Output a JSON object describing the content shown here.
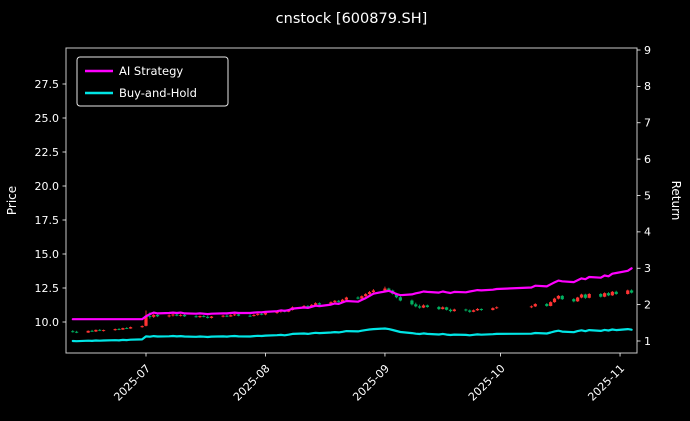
{
  "title": "cnstock [600879.SH]",
  "chart_data": {
    "type": "candlestick+line",
    "title": "cnstock [600879.SH]",
    "grid": false,
    "x_axis": {
      "ticks": [
        {
          "label": "2025-07",
          "date": "2025-07-01"
        },
        {
          "label": "2025-08",
          "date": "2025-08-01"
        },
        {
          "label": "2025-09",
          "date": "2025-09-01"
        },
        {
          "label": "2025-10",
          "date": "2025-10-01"
        },
        {
          "label": "2025-11",
          "date": "2025-11-01"
        }
      ],
      "range": [
        "2025-06-10",
        "2025-11-06"
      ]
    },
    "left_axis": {
      "label": "Price",
      "ticks": [
        "10.0",
        "12.5",
        "15.0",
        "17.5",
        "20.0",
        "22.5",
        "25.0",
        "27.5"
      ],
      "range": [
        7.7,
        30.2
      ]
    },
    "right_axis": {
      "label": "Return",
      "ticks": [
        "1",
        "2",
        "3",
        "4",
        "5",
        "6",
        "7",
        "8",
        "9"
      ],
      "range": [
        0.67,
        9.05
      ]
    },
    "legend": {
      "position": "upper left",
      "entries": [
        {
          "label": "AI Strategy",
          "color": "#ff00ff"
        },
        {
          "label": "Buy-and-Hold",
          "color": "#00e5e5"
        }
      ]
    },
    "colors": {
      "background": "#000000",
      "text": "#ffffff",
      "up_candle": "#ff3333",
      "down_candle": "#00b060",
      "spine": "#c8c8c8"
    },
    "candles_format": [
      "date",
      "open",
      "high",
      "low",
      "close"
    ],
    "candles": [
      [
        "2025-06-12",
        9.32,
        9.4,
        9.22,
        9.28
      ],
      [
        "2025-06-13",
        9.28,
        9.35,
        9.18,
        9.22
      ],
      [
        "2025-06-16",
        9.22,
        9.38,
        9.2,
        9.35
      ],
      [
        "2025-06-17",
        9.35,
        9.42,
        9.28,
        9.3
      ],
      [
        "2025-06-18",
        9.3,
        9.45,
        9.27,
        9.42
      ],
      [
        "2025-06-19",
        9.42,
        9.48,
        9.33,
        9.36
      ],
      [
        "2025-06-20",
        9.36,
        9.44,
        9.3,
        9.4
      ],
      [
        "2025-06-23",
        9.4,
        9.52,
        9.36,
        9.48
      ],
      [
        "2025-06-24",
        9.48,
        9.55,
        9.4,
        9.44
      ],
      [
        "2025-06-25",
        9.44,
        9.58,
        9.42,
        9.55
      ],
      [
        "2025-06-26",
        9.55,
        9.62,
        9.48,
        9.52
      ],
      [
        "2025-06-27",
        9.52,
        9.66,
        9.5,
        9.62
      ],
      [
        "2025-06-30",
        9.62,
        9.75,
        9.58,
        9.7
      ],
      [
        "2025-07-01",
        9.72,
        10.85,
        9.68,
        10.45
      ],
      [
        "2025-07-02",
        10.45,
        10.72,
        10.25,
        10.38
      ],
      [
        "2025-07-03",
        10.38,
        10.6,
        10.3,
        10.52
      ],
      [
        "2025-07-04",
        10.52,
        10.58,
        10.36,
        10.42
      ],
      [
        "2025-07-07",
        10.42,
        10.55,
        10.34,
        10.48
      ],
      [
        "2025-07-08",
        10.48,
        10.62,
        10.4,
        10.55
      ],
      [
        "2025-07-09",
        10.55,
        10.6,
        10.42,
        10.46
      ],
      [
        "2025-07-10",
        10.46,
        10.58,
        10.4,
        10.52
      ],
      [
        "2025-07-11",
        10.52,
        10.56,
        10.38,
        10.42
      ],
      [
        "2025-07-14",
        10.42,
        10.5,
        10.32,
        10.36
      ],
      [
        "2025-07-15",
        10.36,
        10.48,
        10.3,
        10.44
      ],
      [
        "2025-07-16",
        10.44,
        10.52,
        10.34,
        10.38
      ],
      [
        "2025-07-17",
        10.38,
        10.46,
        10.26,
        10.3
      ],
      [
        "2025-07-18",
        10.3,
        10.44,
        10.26,
        10.4
      ],
      [
        "2025-07-21",
        10.4,
        10.52,
        10.34,
        10.46
      ],
      [
        "2025-07-22",
        10.46,
        10.54,
        10.36,
        10.4
      ],
      [
        "2025-07-23",
        10.4,
        10.56,
        10.38,
        10.5
      ],
      [
        "2025-07-24",
        10.5,
        10.62,
        10.44,
        10.56
      ],
      [
        "2025-07-25",
        10.56,
        10.6,
        10.42,
        10.46
      ],
      [
        "2025-07-28",
        10.46,
        10.56,
        10.38,
        10.44
      ],
      [
        "2025-07-29",
        10.44,
        10.58,
        10.4,
        10.52
      ],
      [
        "2025-07-30",
        10.52,
        10.66,
        10.46,
        10.6
      ],
      [
        "2025-07-31",
        10.6,
        10.68,
        10.5,
        10.55
      ],
      [
        "2025-08-01",
        10.55,
        10.72,
        10.5,
        10.66
      ],
      [
        "2025-08-04",
        10.66,
        10.82,
        10.6,
        10.76
      ],
      [
        "2025-08-05",
        10.76,
        10.9,
        10.68,
        10.84
      ],
      [
        "2025-08-06",
        10.84,
        10.92,
        10.7,
        10.75
      ],
      [
        "2025-08-07",
        10.75,
        10.95,
        10.72,
        10.88
      ],
      [
        "2025-08-08",
        10.88,
        11.15,
        10.85,
        11.08
      ],
      [
        "2025-08-11",
        11.08,
        11.25,
        11.0,
        11.18
      ],
      [
        "2025-08-12",
        11.18,
        11.24,
        11.02,
        11.08
      ],
      [
        "2025-08-13",
        11.08,
        11.32,
        11.05,
        11.26
      ],
      [
        "2025-08-14",
        11.26,
        11.45,
        11.2,
        11.38
      ],
      [
        "2025-08-15",
        11.38,
        11.44,
        11.22,
        11.28
      ],
      [
        "2025-08-18",
        11.28,
        11.52,
        11.25,
        11.46
      ],
      [
        "2025-08-19",
        11.46,
        11.62,
        11.4,
        11.56
      ],
      [
        "2025-08-20",
        11.56,
        11.62,
        11.42,
        11.48
      ],
      [
        "2025-08-21",
        11.48,
        11.7,
        11.45,
        11.64
      ],
      [
        "2025-08-22",
        11.64,
        11.86,
        11.58,
        11.8
      ],
      [
        "2025-08-25",
        11.8,
        11.88,
        11.66,
        11.72
      ],
      [
        "2025-08-26",
        11.72,
        11.96,
        11.7,
        11.9
      ],
      [
        "2025-08-27",
        11.9,
        12.12,
        11.85,
        12.05
      ],
      [
        "2025-08-28",
        12.05,
        12.28,
        12.0,
        12.2
      ],
      [
        "2025-08-29",
        12.2,
        12.42,
        12.12,
        12.32
      ],
      [
        "2025-09-01",
        12.32,
        12.6,
        12.28,
        12.46
      ],
      [
        "2025-09-02",
        12.46,
        12.52,
        12.25,
        12.32
      ],
      [
        "2025-09-03",
        12.32,
        12.38,
        12.02,
        12.08
      ],
      [
        "2025-09-04",
        12.08,
        12.15,
        11.75,
        11.82
      ],
      [
        "2025-09-05",
        11.82,
        11.9,
        11.52,
        11.58
      ],
      [
        "2025-09-08",
        11.58,
        11.65,
        11.22,
        11.3
      ],
      [
        "2025-09-09",
        11.3,
        11.42,
        11.08,
        11.15
      ],
      [
        "2025-09-10",
        11.15,
        11.28,
        10.98,
        11.06
      ],
      [
        "2025-09-11",
        11.06,
        11.3,
        11.02,
        11.22
      ],
      [
        "2025-09-12",
        11.22,
        11.28,
        11.05,
        11.1
      ],
      [
        "2025-09-15",
        11.1,
        11.18,
        10.88,
        10.95
      ],
      [
        "2025-09-16",
        10.95,
        11.15,
        10.92,
        11.08
      ],
      [
        "2025-09-17",
        11.08,
        11.12,
        10.85,
        10.9
      ],
      [
        "2025-09-18",
        10.9,
        10.98,
        10.72,
        10.8
      ],
      [
        "2025-09-19",
        10.8,
        10.98,
        10.76,
        10.92
      ],
      [
        "2025-09-22",
        10.92,
        10.98,
        10.78,
        10.85
      ],
      [
        "2025-09-23",
        10.85,
        10.92,
        10.68,
        10.75
      ],
      [
        "2025-09-24",
        10.75,
        10.92,
        10.72,
        10.86
      ],
      [
        "2025-09-25",
        10.86,
        11.02,
        10.82,
        10.96
      ],
      [
        "2025-09-26",
        10.96,
        11.0,
        10.82,
        10.88
      ],
      [
        "2025-09-29",
        10.88,
        11.08,
        10.85,
        11.02
      ],
      [
        "2025-09-30",
        11.02,
        11.15,
        10.96,
        11.08
      ],
      [
        "2025-10-09",
        11.08,
        11.22,
        11.02,
        11.15
      ],
      [
        "2025-10-10",
        11.15,
        11.38,
        11.1,
        11.32
      ],
      [
        "2025-10-13",
        11.32,
        11.4,
        11.12,
        11.18
      ],
      [
        "2025-10-14",
        11.18,
        11.52,
        11.15,
        11.46
      ],
      [
        "2025-10-15",
        11.46,
        11.78,
        11.42,
        11.72
      ],
      [
        "2025-10-16",
        11.72,
        11.98,
        11.66,
        11.92
      ],
      [
        "2025-10-17",
        11.92,
        11.98,
        11.62,
        11.68
      ],
      [
        "2025-10-20",
        11.68,
        11.75,
        11.45,
        11.52
      ],
      [
        "2025-10-21",
        11.52,
        11.85,
        11.48,
        11.8
      ],
      [
        "2025-10-22",
        11.8,
        12.08,
        11.75,
        12.02
      ],
      [
        "2025-10-23",
        12.02,
        12.08,
        11.7,
        11.78
      ],
      [
        "2025-10-24",
        11.78,
        12.12,
        11.74,
        12.06
      ],
      [
        "2025-10-27",
        12.06,
        12.12,
        11.8,
        11.86
      ],
      [
        "2025-10-28",
        11.86,
        12.18,
        11.82,
        12.12
      ],
      [
        "2025-10-29",
        12.12,
        12.2,
        11.9,
        11.96
      ],
      [
        "2025-10-30",
        11.96,
        12.28,
        11.92,
        12.22
      ],
      [
        "2025-10-31",
        12.22,
        12.3,
        12.0,
        12.06
      ],
      [
        "2025-11-03",
        12.06,
        12.38,
        12.02,
        12.32
      ],
      [
        "2025-11-04",
        12.32,
        12.4,
        12.1,
        12.16
      ]
    ],
    "series_note": "series values are Return-axis values aligned one-to-one with candle dates",
    "series": [
      {
        "name": "AI Strategy",
        "axis": "return",
        "color": "#ff00ff",
        "values": [
          1.6,
          1.6,
          1.6,
          1.6,
          1.6,
          1.6,
          1.6,
          1.6,
          1.6,
          1.6,
          1.6,
          1.6,
          1.6,
          1.68,
          1.74,
          1.78,
          1.76,
          1.77,
          1.78,
          1.77,
          1.78,
          1.76,
          1.75,
          1.76,
          1.75,
          1.74,
          1.75,
          1.76,
          1.76,
          1.77,
          1.78,
          1.77,
          1.77,
          1.78,
          1.79,
          1.79,
          1.8,
          1.82,
          1.84,
          1.83,
          1.85,
          1.89,
          1.92,
          1.91,
          1.94,
          1.97,
          1.96,
          2.0,
          2.03,
          2.02,
          2.06,
          2.1,
          2.08,
          2.13,
          2.18,
          2.24,
          2.3,
          2.36,
          2.38,
          2.34,
          2.29,
          2.26,
          2.28,
          2.31,
          2.33,
          2.36,
          2.35,
          2.33,
          2.36,
          2.34,
          2.32,
          2.35,
          2.34,
          2.36,
          2.38,
          2.4,
          2.39,
          2.41,
          2.43,
          2.47,
          2.52,
          2.5,
          2.56,
          2.61,
          2.66,
          2.64,
          2.62,
          2.67,
          2.72,
          2.7,
          2.76,
          2.74,
          2.8,
          2.78,
          2.85,
          2.87,
          2.93,
          3.0
        ]
      },
      {
        "name": "Buy-and-Hold",
        "axis": "return",
        "color": "#00e5e5",
        "values": [
          1.0,
          0.994,
          1.008,
          1.002,
          1.015,
          1.009,
          1.013,
          1.022,
          1.017,
          1.029,
          1.026,
          1.037,
          1.045,
          1.126,
          1.119,
          1.134,
          1.123,
          1.129,
          1.137,
          1.127,
          1.134,
          1.123,
          1.116,
          1.125,
          1.119,
          1.11,
          1.121,
          1.127,
          1.121,
          1.131,
          1.138,
          1.127,
          1.125,
          1.134,
          1.142,
          1.137,
          1.149,
          1.159,
          1.168,
          1.158,
          1.172,
          1.194,
          1.205,
          1.194,
          1.213,
          1.226,
          1.216,
          1.235,
          1.246,
          1.237,
          1.254,
          1.272,
          1.263,
          1.282,
          1.299,
          1.315,
          1.328,
          1.343,
          1.328,
          1.302,
          1.274,
          1.248,
          1.218,
          1.202,
          1.192,
          1.209,
          1.196,
          1.18,
          1.194,
          1.175,
          1.164,
          1.177,
          1.169,
          1.158,
          1.17,
          1.181,
          1.172,
          1.188,
          1.194,
          1.202,
          1.22,
          1.205,
          1.235,
          1.263,
          1.284,
          1.259,
          1.241,
          1.272,
          1.295,
          1.269,
          1.3,
          1.278,
          1.306,
          1.289,
          1.317,
          1.3,
          1.328,
          1.31
        ]
      }
    ]
  }
}
